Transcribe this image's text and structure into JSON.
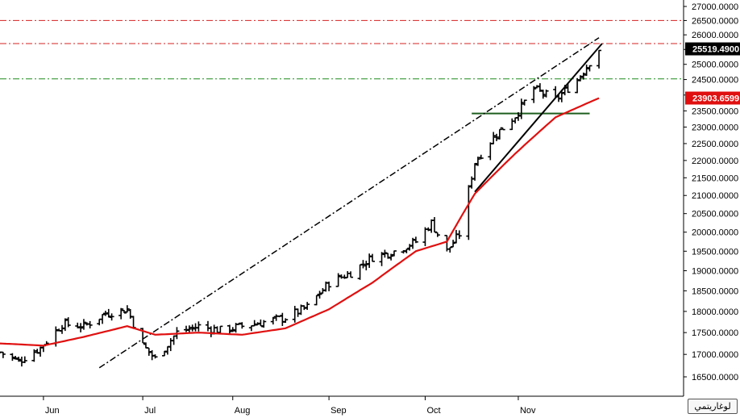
{
  "chart_data": {
    "type": "ohlc",
    "scale": "log",
    "ylim": [
      16500,
      27000
    ],
    "y_ticks": [
      "27000.0000",
      "26500.0000",
      "26000.0000",
      "25500.0000",
      "25000.0000",
      "24500.0000",
      "24000.0000",
      "23500.0000",
      "23000.0000",
      "22500.0000",
      "22000.0000",
      "21500.0000",
      "21000.0000",
      "20500.0000",
      "20000.0000",
      "19500.0000",
      "19000.0000",
      "18500.0000",
      "18000.0000",
      "17500.0000",
      "17000.0000",
      "16500.0000"
    ],
    "y_tick_values": [
      27000,
      26500,
      26000,
      25500,
      25000,
      24500,
      24000,
      23500,
      23000,
      22500,
      22000,
      21500,
      21000,
      20500,
      20000,
      19500,
      19000,
      18500,
      18000,
      17500,
      17000,
      16500
    ],
    "x_ticks": [
      {
        "label": "Jun",
        "date": "2023-06-01"
      },
      {
        "label": "Jul",
        "date": "2023-07-03"
      },
      {
        "label": "Aug",
        "date": "2023-08-01"
      },
      {
        "label": "Sep",
        "date": "2023-09-01"
      },
      {
        "label": "Oct",
        "date": "2023-10-02"
      },
      {
        "label": "Nov",
        "date": "2023-11-01"
      }
    ],
    "date_range": [
      "2023-05-18",
      "2023-11-27"
    ],
    "price_tag": {
      "value": 25519.49,
      "text": "25519.4900",
      "color": "#000000"
    },
    "ma_tag": {
      "value": 23903.6599,
      "text": "23903.6599",
      "color": "#e01010"
    },
    "horizontal_levels": [
      {
        "value": 26500,
        "style": "dash-dot",
        "color": "#d62020"
      },
      {
        "value": 25700,
        "style": "dash-dot",
        "color": "#d62020"
      },
      {
        "value": 24520,
        "style": "dash-dot",
        "color": "#1e8a1e"
      },
      {
        "value": 23420,
        "style": "solid",
        "color": "#1e5e1e",
        "x_range": [
          "2023-10-17",
          "2023-11-24"
        ]
      }
    ],
    "trendlines": [
      {
        "style": "dash-dot",
        "color": "#000000",
        "points": [
          [
            "2023-06-19",
            16700
          ],
          [
            "2023-11-27",
            25900
          ]
        ]
      },
      {
        "style": "solid",
        "color": "#000000",
        "points": [
          [
            "2023-10-18",
            21100
          ],
          [
            "2023-11-28",
            25700
          ]
        ]
      }
    ],
    "ohlc_sampled": {
      "x": [
        "2023-05-18",
        "2023-05-24",
        "2023-05-31",
        "2023-06-07",
        "2023-06-14",
        "2023-06-21",
        "2023-06-28",
        "2023-07-03",
        "2023-07-07",
        "2023-07-14",
        "2023-07-21",
        "2023-07-28",
        "2023-08-04",
        "2023-08-11",
        "2023-08-18",
        "2023-08-25",
        "2023-09-01",
        "2023-09-08",
        "2023-09-15",
        "2023-09-22",
        "2023-09-29",
        "2023-10-04",
        "2023-10-09",
        "2023-10-13",
        "2023-10-18",
        "2023-10-24",
        "2023-10-31",
        "2023-11-06",
        "2023-11-13",
        "2023-11-20",
        "2023-11-27"
      ],
      "close": [
        17050,
        16850,
        17150,
        17700,
        17650,
        17950,
        18050,
        17200,
        16900,
        17500,
        17650,
        17550,
        17650,
        17750,
        17850,
        18100,
        18700,
        18950,
        19350,
        19500,
        19750,
        20250,
        19500,
        19950,
        21950,
        22700,
        23350,
        24200,
        23850,
        24500,
        25519
      ]
    },
    "ma_sampled": {
      "x": [
        "2023-05-18",
        "2023-06-01",
        "2023-06-14",
        "2023-06-28",
        "2023-07-07",
        "2023-07-21",
        "2023-08-04",
        "2023-08-18",
        "2023-09-01",
        "2023-09-15",
        "2023-09-29",
        "2023-10-09",
        "2023-10-18",
        "2023-10-31",
        "2023-11-13",
        "2023-11-27"
      ],
      "values": [
        17250,
        17200,
        17400,
        17650,
        17450,
        17500,
        17450,
        17600,
        18050,
        18700,
        19500,
        19750,
        21050,
        22200,
        23300,
        23903
      ]
    }
  },
  "ui": {
    "badge_label": "لوغاريتمي"
  },
  "colors": {
    "bars": "#000000",
    "moving_average": "#e01010",
    "grid": "none"
  }
}
